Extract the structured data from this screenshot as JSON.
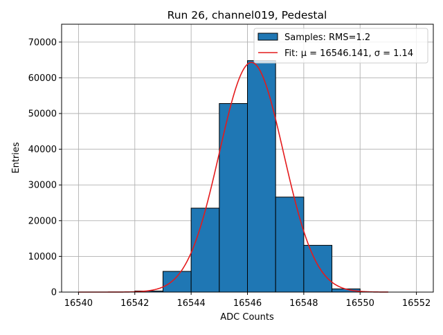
{
  "chart_data": {
    "type": "bar",
    "title": "Run 26, channel019, Pedestal",
    "xlabel": "ADC Counts",
    "ylabel": "Entries",
    "xlim": [
      16539.4,
      16552.6
    ],
    "ylim": [
      0,
      75000
    ],
    "xticks": [
      16540,
      16542,
      16544,
      16546,
      16548,
      16550,
      16552
    ],
    "yticks": [
      0,
      10000,
      20000,
      30000,
      40000,
      50000,
      60000,
      70000
    ],
    "grid": true,
    "legend_position": "top-right",
    "series": [
      {
        "name": "Samples: RMS=1.2",
        "kind": "histogram",
        "bin_width": 1,
        "bins": [
          16540,
          16541,
          16542,
          16543,
          16544,
          16545,
          16546,
          16547,
          16548,
          16549,
          16550,
          16551
        ],
        "values": [
          0,
          0,
          300,
          5800,
          23500,
          52800,
          64800,
          26600,
          13100,
          900,
          0,
          0
        ],
        "color": "#1f77b4"
      },
      {
        "name": "Fit: μ = 16546.141, σ = 1.14",
        "kind": "gaussian-fit",
        "mu": 16546.141,
        "sigma": 1.14,
        "amplitude": 64300,
        "x_range": [
          16540,
          16551
        ],
        "color": "#e41a1c"
      }
    ]
  }
}
